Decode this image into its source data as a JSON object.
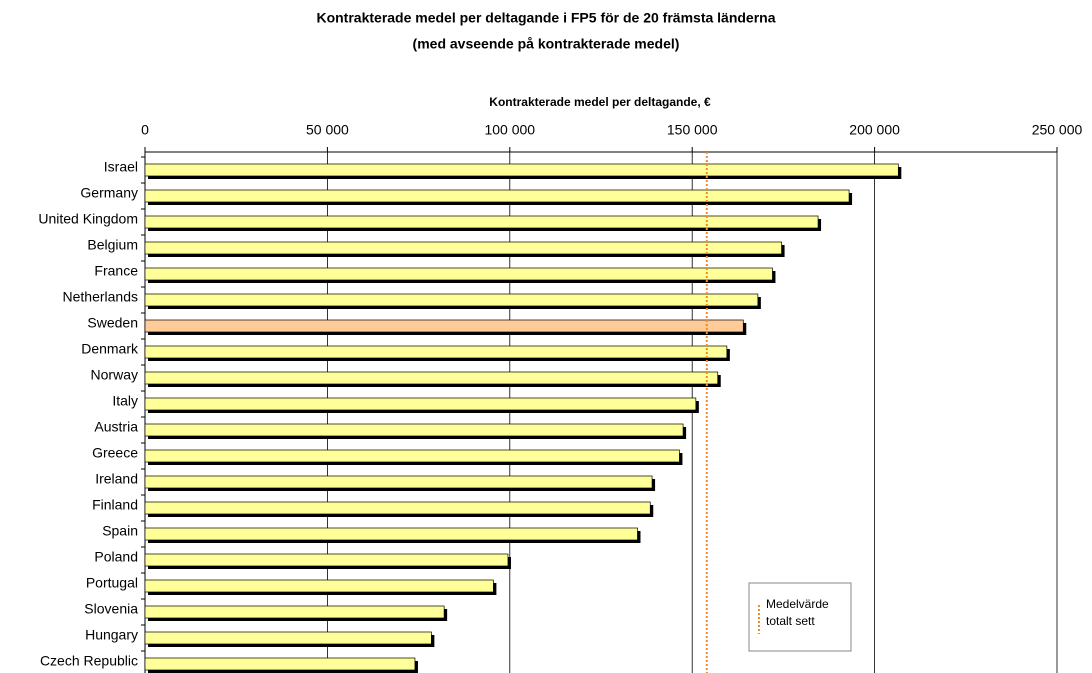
{
  "chart_data": {
    "type": "hbar",
    "title": "Kontrakterade medel per deltagande  i FP5 för de 20 främsta länderna",
    "subtitle": "(med avseende på kontrakterade medel)",
    "x_label": "Kontrakterade medel per deltagande, €",
    "categories": [
      "Israel",
      "Germany",
      "United Kingdom",
      "Belgium",
      "France",
      "Netherlands",
      "Sweden",
      "Denmark",
      "Norway",
      "Italy",
      "Austria",
      "Greece",
      "Ireland",
      "Finland",
      "Spain",
      "Poland",
      "Portugal",
      "Slovenia",
      "Hungary",
      "Czech Republic"
    ],
    "values": [
      206500,
      193000,
      184500,
      174500,
      172000,
      168000,
      164000,
      159500,
      157000,
      151000,
      147500,
      146500,
      139000,
      138500,
      135000,
      99500,
      95500,
      82000,
      78500,
      74000
    ],
    "colors": [
      "#ffff99",
      "#ffff99",
      "#ffff99",
      "#ffff99",
      "#ffff99",
      "#ffff99",
      "#ffcc99",
      "#ffff99",
      "#ffff99",
      "#ffff99",
      "#ffff99",
      "#ffff99",
      "#ffff99",
      "#ffff99",
      "#ffff99",
      "#ffff99",
      "#ffff99",
      "#ffff99",
      "#ffff99",
      "#ffff99"
    ],
    "xlim": [
      0,
      250000
    ],
    "xticks": [
      0,
      {
        "value": 50000,
        "label": "50 000"
      },
      {
        "value": 100000,
        "label": "100 000"
      },
      {
        "value": 150000,
        "label": "150 000"
      },
      {
        "value": 200000,
        "label": "200 000"
      },
      {
        "value": 250000,
        "label": "250 000"
      }
    ],
    "grid": true,
    "reference_line": {
      "name": "Medelvärde totalt sett",
      "value": 154000,
      "color": "#f08c28"
    },
    "legend": "bottom-right"
  }
}
